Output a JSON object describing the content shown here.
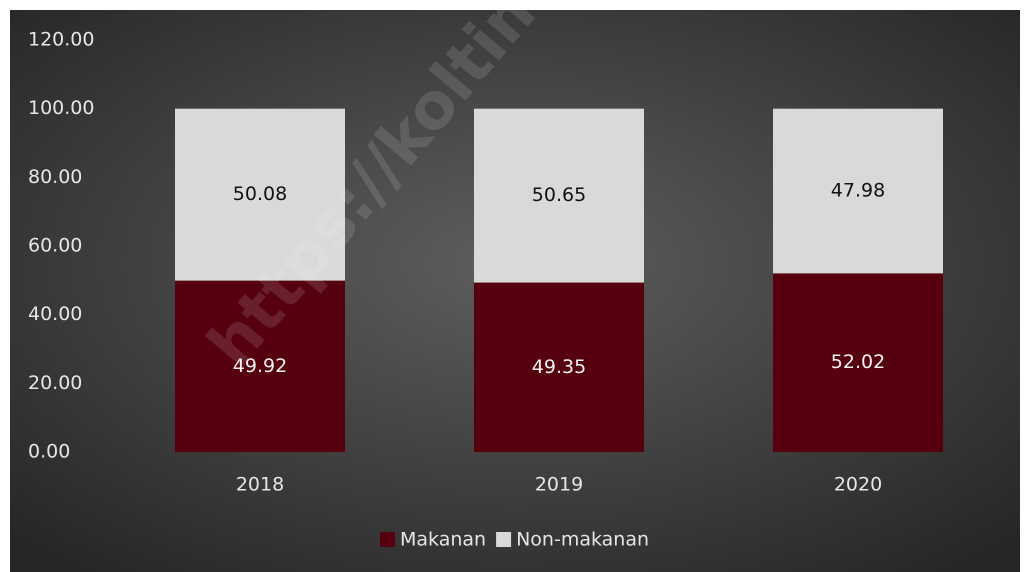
{
  "chart_data": {
    "type": "stacked_bar",
    "categories": [
      "2018",
      "2019",
      "2020"
    ],
    "series": [
      {
        "name": "Makanan",
        "color": "#56000f",
        "values": [
          49.92,
          49.35,
          52.02
        ]
      },
      {
        "name": "Non-makanan",
        "color": "#d9d9d9",
        "values": [
          50.08,
          50.65,
          47.98
        ]
      }
    ],
    "ylim": [
      0,
      120
    ],
    "yticks": [
      {
        "value": 0,
        "label": "0.00"
      },
      {
        "value": 20,
        "label": "20.00"
      },
      {
        "value": 40,
        "label": "40.00"
      },
      {
        "value": 60,
        "label": "60.00"
      },
      {
        "value": 80,
        "label": "80.00"
      },
      {
        "value": 100,
        "label": "100.00"
      },
      {
        "value": 120,
        "label": "120.00"
      }
    ],
    "grid": false,
    "legend": "bottom",
    "watermark": "https://koltimkab."
  }
}
